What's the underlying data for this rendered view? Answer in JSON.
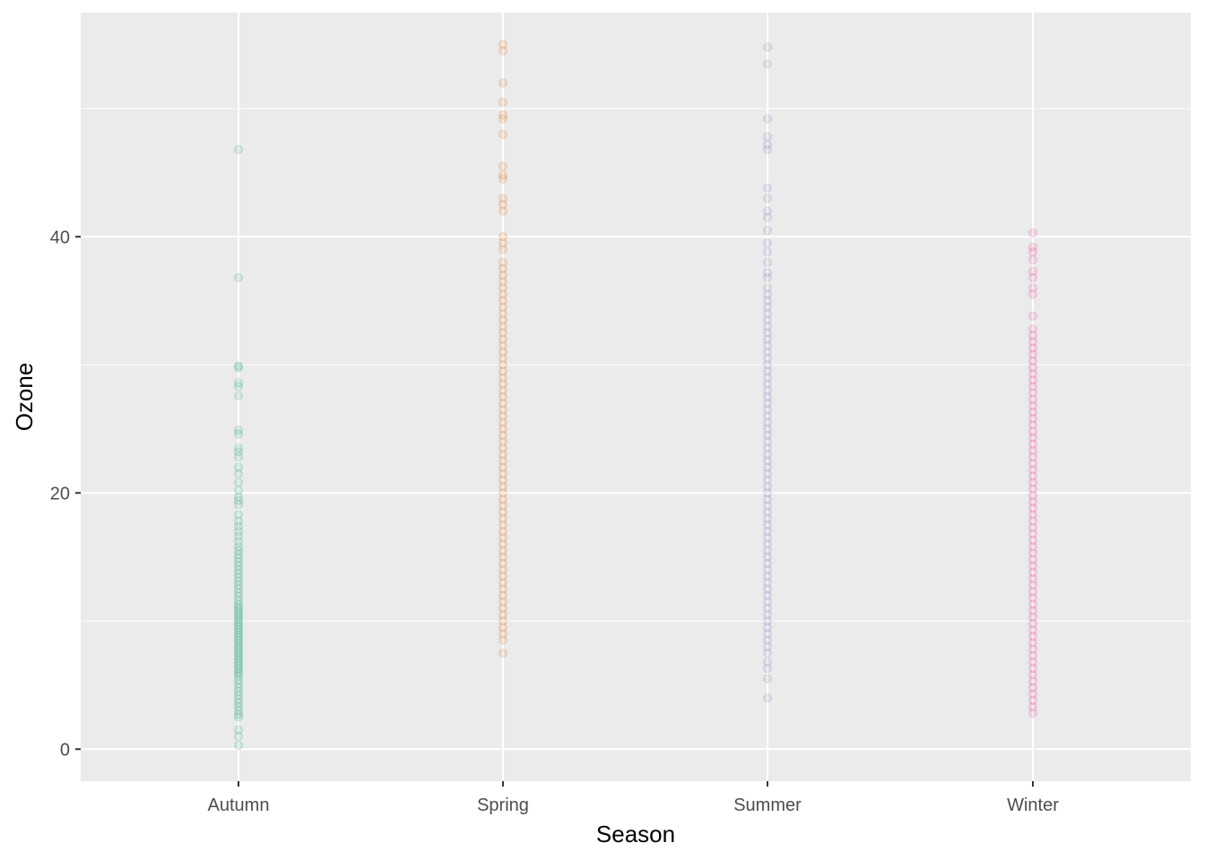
{
  "chart_data": {
    "type": "scatter",
    "title": "",
    "xlabel": "Season",
    "ylabel": "Ozone",
    "ylim": [
      -2.5,
      57.5
    ],
    "y_ticks": [
      0,
      20,
      40
    ],
    "y_ticks_labels": [
      "0",
      "20",
      "40"
    ],
    "categories": [
      "Autumn",
      "Spring",
      "Summer",
      "Winter"
    ],
    "grid": true,
    "legend": "none",
    "point_opacity": 0.12,
    "background": "#ebebeb",
    "gridline_color": "#ffffff",
    "series": [
      {
        "category": "Autumn",
        "color": "#1b9e77",
        "values": [
          46.8,
          36.8,
          29.9,
          29.8,
          28.6,
          28.3,
          27.6,
          24.9,
          24.6,
          23.5,
          23.2,
          22.8,
          22.0,
          21.5,
          20.8,
          20.2,
          19.7,
          19.4,
          19.1,
          18.3,
          17.8,
          17.4,
          17.0,
          16.6,
          16.2,
          15.8,
          15.5,
          15.2,
          14.9,
          14.6,
          14.3,
          14.0,
          13.7,
          13.4,
          13.1,
          12.8,
          12.5,
          12.2,
          11.9,
          11.6,
          11.3,
          11.1,
          10.9,
          10.7,
          10.5,
          10.3,
          10.1,
          9.9,
          9.7,
          9.5,
          9.3,
          9.1,
          8.9,
          8.7,
          8.5,
          8.3,
          8.1,
          7.9,
          7.7,
          7.5,
          7.3,
          7.1,
          6.9,
          6.7,
          6.5,
          6.3,
          6.1,
          5.9,
          5.7,
          5.4,
          5.1,
          4.8,
          4.5,
          4.2,
          3.9,
          3.6,
          3.3,
          3.0,
          2.7,
          2.5,
          1.5,
          1.0,
          0.3
        ]
      },
      {
        "category": "Spring",
        "color": "#d95f02",
        "values": [
          55.0,
          54.5,
          52.0,
          50.5,
          49.5,
          49.2,
          48.0,
          45.5,
          44.8,
          44.5,
          43.0,
          42.5,
          42.0,
          40.0,
          39.5,
          39.0,
          38.0,
          37.5,
          37.0,
          36.5,
          36.0,
          35.5,
          35.0,
          34.5,
          34.0,
          33.5,
          33.0,
          32.5,
          32.0,
          31.5,
          31.0,
          30.5,
          30.0,
          29.5,
          29.0,
          28.5,
          28.0,
          27.5,
          27.0,
          26.5,
          26.0,
          25.5,
          25.0,
          24.5,
          24.0,
          23.5,
          23.0,
          22.5,
          22.0,
          21.5,
          21.0,
          20.5,
          20.0,
          19.5,
          19.0,
          18.5,
          18.0,
          17.5,
          17.0,
          16.5,
          16.0,
          15.5,
          15.0,
          14.5,
          14.0,
          13.5,
          13.0,
          12.5,
          12.0,
          11.5,
          11.0,
          10.5,
          10.0,
          9.5,
          9.0,
          8.5,
          7.5
        ]
      },
      {
        "category": "Summer",
        "color": "#7570b3",
        "values": [
          54.8,
          53.5,
          49.2,
          47.8,
          47.2,
          46.8,
          43.8,
          43.0,
          42.0,
          41.5,
          40.5,
          39.5,
          38.8,
          38.0,
          37.2,
          36.8,
          36.0,
          35.5,
          35.0,
          34.5,
          34.0,
          33.5,
          33.0,
          32.5,
          32.0,
          31.5,
          31.0,
          30.5,
          30.0,
          29.5,
          29.0,
          28.5,
          28.0,
          27.5,
          27.0,
          26.5,
          26.0,
          25.5,
          25.0,
          24.5,
          24.0,
          23.5,
          23.0,
          22.5,
          22.0,
          21.5,
          21.0,
          20.5,
          20.0,
          19.5,
          19.0,
          18.5,
          18.0,
          17.5,
          17.0,
          16.5,
          16.0,
          15.5,
          15.0,
          14.5,
          14.0,
          13.5,
          13.0,
          12.5,
          12.0,
          11.5,
          11.0,
          10.5,
          10.0,
          9.5,
          9.0,
          8.5,
          8.0,
          7.5,
          6.8,
          6.3,
          5.5,
          4.0
        ]
      },
      {
        "category": "Winter",
        "color": "#e7298a",
        "values": [
          40.3,
          39.2,
          38.8,
          38.2,
          37.3,
          36.8,
          36.0,
          35.5,
          33.8,
          32.8,
          32.3,
          31.8,
          31.3,
          30.8,
          30.3,
          29.8,
          29.3,
          28.8,
          28.3,
          27.8,
          27.3,
          26.8,
          26.3,
          25.8,
          25.3,
          24.8,
          24.3,
          23.8,
          23.3,
          22.8,
          22.3,
          21.8,
          21.3,
          20.8,
          20.3,
          19.8,
          19.3,
          18.8,
          18.3,
          17.8,
          17.3,
          16.8,
          16.3,
          15.8,
          15.3,
          14.8,
          14.3,
          13.8,
          13.3,
          12.8,
          12.3,
          11.8,
          11.3,
          10.8,
          10.3,
          9.8,
          9.3,
          8.8,
          8.3,
          7.8,
          7.3,
          6.8,
          6.3,
          5.8,
          5.3,
          4.8,
          4.3,
          3.8,
          3.3,
          2.8
        ]
      }
    ]
  }
}
